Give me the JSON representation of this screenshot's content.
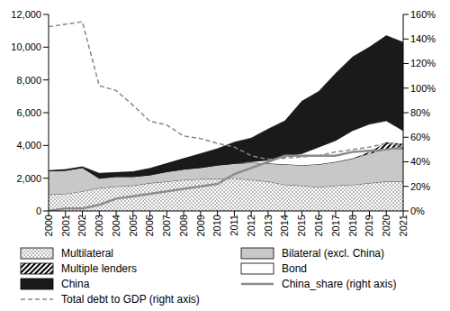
{
  "chart_data": {
    "type": "area",
    "stacked": true,
    "grid": false,
    "legend": "bottom",
    "categories": [
      "2000",
      "2001",
      "2002",
      "2003",
      "2004",
      "2005",
      "2006",
      "2007",
      "2008",
      "2009",
      "2010",
      "2011",
      "2012",
      "2013",
      "2014",
      "2015",
      "2016",
      "2017",
      "2018",
      "2019",
      "2020",
      "2021"
    ],
    "ylim": [
      0,
      12000
    ],
    "yticks": [
      0,
      {
        "value": 2000,
        "label": "2,000"
      },
      {
        "value": 4000,
        "label": "4,000"
      },
      {
        "value": 6000,
        "label": "6,000"
      },
      {
        "value": 8000,
        "label": "8,000"
      },
      {
        "value": 10000,
        "label": "10,000"
      },
      {
        "value": 12000,
        "label": "12,000"
      }
    ],
    "y2lim": [
      0,
      160
    ],
    "y2ticks": [
      {
        "value": 0,
        "label": "0%"
      },
      {
        "value": 20,
        "label": "20%"
      },
      {
        "value": 40,
        "label": "40%"
      },
      {
        "value": 60,
        "label": "60%"
      },
      {
        "value": 80,
        "label": "80%"
      },
      {
        "value": 100,
        "label": "100%"
      },
      {
        "value": 120,
        "label": "120%"
      },
      {
        "value": 140,
        "label": "140%"
      },
      {
        "value": 160,
        "label": "160%"
      }
    ],
    "series": [
      {
        "name": "Multilateral",
        "type": "area",
        "color": "#444444",
        "values": [
          1000,
          1050,
          1200,
          1400,
          1500,
          1550,
          1700,
          1800,
          1900,
          1950,
          1950,
          2000,
          1900,
          1800,
          1600,
          1550,
          1450,
          1550,
          1600,
          1700,
          1800,
          1800
        ]
      },
      {
        "name": "Bilateral (excl. China)",
        "type": "area",
        "color": "#c8c8c8",
        "values": [
          1450,
          1430,
          1450,
          600,
          600,
          550,
          500,
          600,
          650,
          700,
          850,
          900,
          1050,
          1100,
          1250,
          1250,
          1400,
          1450,
          1600,
          1800,
          2000,
          2000
        ]
      },
      {
        "name": "Multiple lenders",
        "type": "area",
        "color": "#000000",
        "values": [
          0,
          0,
          0,
          0,
          0,
          0,
          0,
          0,
          0,
          0,
          0,
          0,
          0,
          0,
          0,
          0,
          0,
          0,
          0,
          100,
          400,
          300
        ]
      },
      {
        "name": "Bond",
        "type": "area",
        "color": "#ffffff",
        "values": [
          0,
          0,
          0,
          0,
          0,
          0,
          0,
          0,
          0,
          0,
          0,
          0,
          50,
          200,
          450,
          700,
          1050,
          1300,
          1700,
          1700,
          1300,
          800
        ]
      },
      {
        "name": "China",
        "type": "area",
        "color": "#1a1a1a",
        "values": [
          0,
          50,
          50,
          300,
          250,
          300,
          400,
          500,
          650,
          850,
          1000,
          1300,
          1450,
          1900,
          2200,
          3200,
          3400,
          4100,
          4500,
          4700,
          5200,
          5400
        ]
      },
      {
        "name": "China_share (right axis)",
        "type": "line",
        "axis": "y2",
        "color": "#8c8c8c",
        "line_style": "solid",
        "values": [
          0,
          2,
          2,
          5,
          10,
          12,
          14,
          16,
          18,
          20,
          22,
          30,
          35,
          40,
          45,
          45,
          45,
          45,
          48,
          49,
          50,
          52
        ]
      },
      {
        "name": "Total debt to GDP (right axis)",
        "type": "line",
        "axis": "y2",
        "color": "#888888",
        "line_style": "dashed",
        "values": [
          150,
          152,
          154,
          102,
          98,
          86,
          73,
          70,
          61,
          59,
          55,
          52,
          45,
          42,
          43,
          44,
          45,
          48,
          50,
          52,
          55,
          53
        ]
      }
    ]
  }
}
